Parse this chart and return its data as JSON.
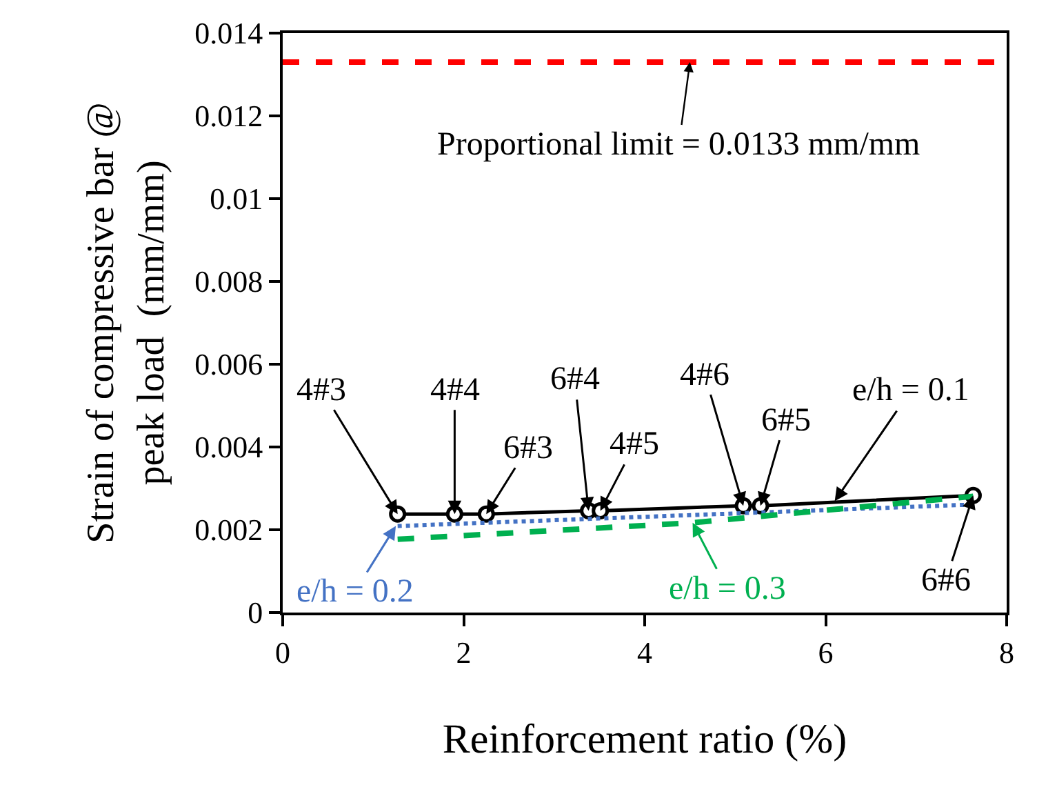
{
  "chart_data": {
    "type": "line",
    "xlabel": "Reinforcement ratio (%)",
    "ylabel": "Strain of compressive bar @\npeak load  (mm/mm)",
    "series": [
      {
        "color": "#000000",
        "x": [
          1.27,
          1.9,
          2.25,
          3.38,
          3.51,
          5.09,
          5.28,
          7.63
        ],
        "values": [
          0.00238,
          0.00238,
          0.00238,
          0.00246,
          0.00246,
          0.00258,
          0.00258,
          0.00283
        ],
        "marker": "circle",
        "line_style": "solid"
      },
      {
        "color": "#4472c4",
        "x": [
          1.27,
          7.63
        ],
        "values": [
          0.00209,
          0.00261
        ],
        "line_style": "dotted"
      },
      {
        "color": "#00b050",
        "x": [
          1.27,
          4.53,
          7.63
        ],
        "values": [
          0.00177,
          0.00217,
          0.00281
        ],
        "line_style": "dashed"
      }
    ],
    "xlim": [
      0,
      8
    ],
    "xticks": [
      0,
      2,
      4,
      6,
      8
    ],
    "ylim": [
      0,
      0.014
    ],
    "yticks": [
      0,
      0.002,
      0.004,
      0.006,
      0.008,
      0.01,
      0.012,
      0.014
    ],
    "ref_lines": [
      {
        "axis": "y",
        "value": 0.0133,
        "label": "Proportional limit = 0.0133 mm/mm",
        "color": "#ff0000",
        "line_style": "dashed"
      }
    ],
    "annotations": [
      {
        "text": "4#3",
        "x": 1.27,
        "y": 0.00238
      },
      {
        "text": "4#4",
        "x": 1.9,
        "y": 0.00238
      },
      {
        "text": "6#3",
        "x": 2.25,
        "y": 0.00238
      },
      {
        "text": "6#4",
        "x": 3.38,
        "y": 0.00246
      },
      {
        "text": "4#5",
        "x": 3.51,
        "y": 0.00246
      },
      {
        "text": "4#6",
        "x": 5.09,
        "y": 0.00258
      },
      {
        "text": "6#5",
        "x": 5.28,
        "y": 0.00258
      },
      {
        "text": "e/h = 0.1",
        "x": 6.1,
        "y": 0.00269
      },
      {
        "text": "6#6",
        "x": 7.63,
        "y": 0.00283
      },
      {
        "text": "e/h = 0.2",
        "x": 1.25,
        "y": 0.00209
      },
      {
        "text": "e/h = 0.3",
        "x": 4.53,
        "y": 0.00217
      }
    ]
  }
}
